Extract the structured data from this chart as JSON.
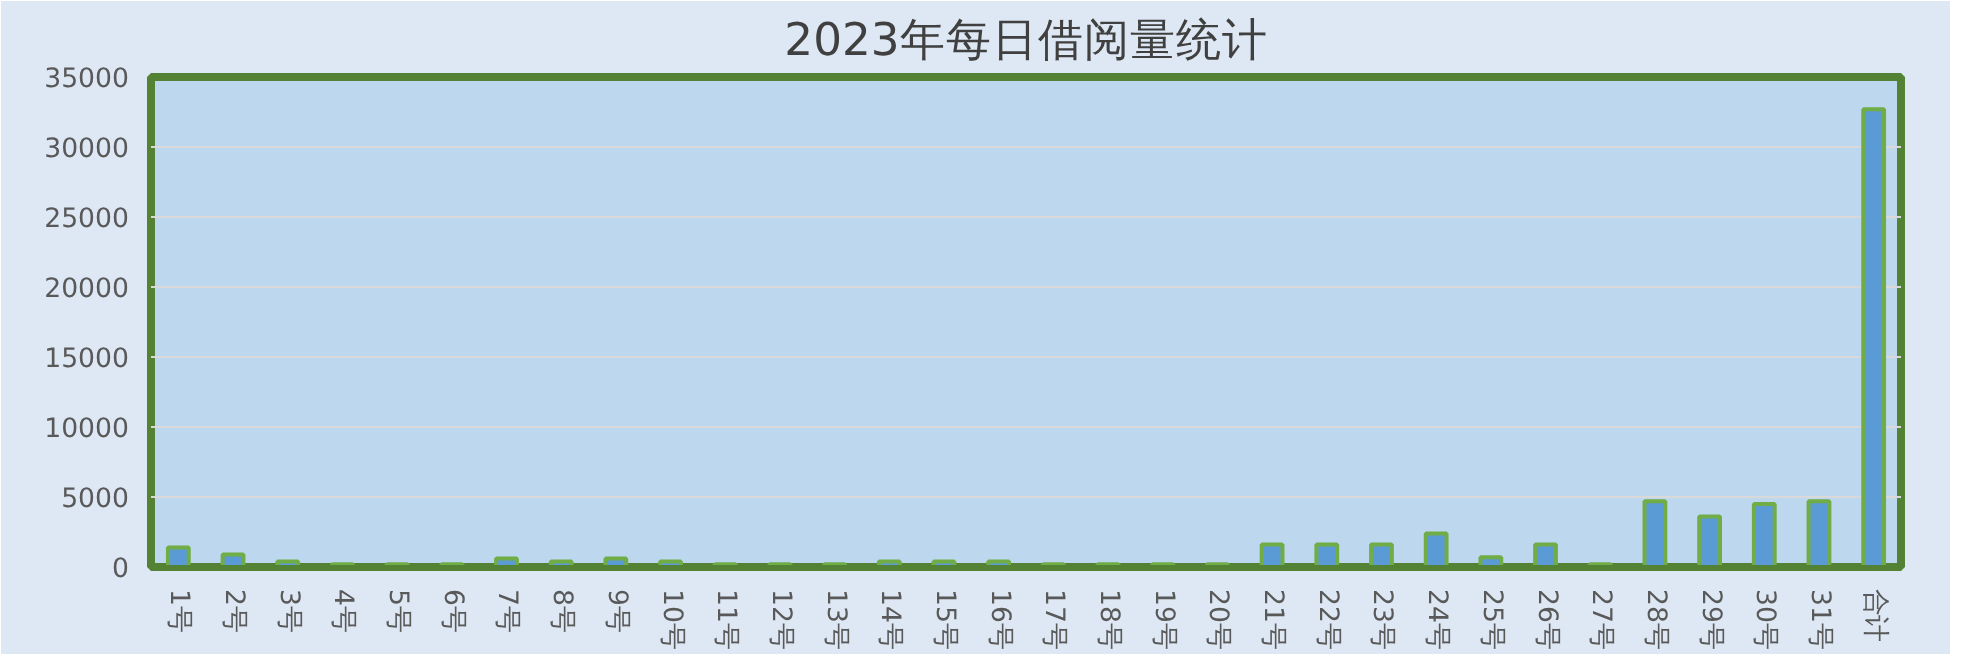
{
  "chart_data": {
    "type": "bar",
    "title": "2023年每日借阅量统计",
    "categories": [
      "1号",
      "2号",
      "3号",
      "4号",
      "5号",
      "6号",
      "7号",
      "8号",
      "9号",
      "10号",
      "11号",
      "12号",
      "13号",
      "14号",
      "15号",
      "16号",
      "17号",
      "18号",
      "19号",
      "20号",
      "21号",
      "22号",
      "23号",
      "24号",
      "25号",
      "26号",
      "27号",
      "28号",
      "29号",
      "30号",
      "31号",
      "合计"
    ],
    "values": [
      1400,
      900,
      400,
      200,
      200,
      200,
      600,
      400,
      600,
      400,
      200,
      200,
      200,
      400,
      400,
      400,
      200,
      200,
      200,
      200,
      1600,
      1600,
      1600,
      2400,
      700,
      1600,
      200,
      4700,
      3600,
      4500,
      4700,
      32700
    ],
    "color": "#5b9bd5",
    "ylim": [
      0,
      35000
    ],
    "yticks": [
      0,
      5000,
      10000,
      15000,
      20000,
      25000,
      30000,
      35000
    ],
    "grid": "y"
  }
}
